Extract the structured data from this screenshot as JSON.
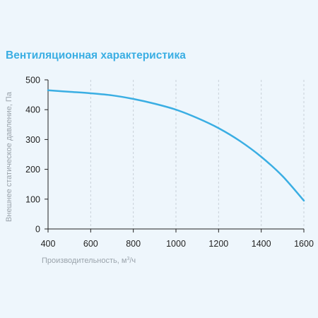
{
  "chart_data": {
    "type": "line",
    "title": "Вентиляционная характеристика",
    "xlabel": "Производительность, м³/ч",
    "xlabel_main": "Производительность, м",
    "xlabel_sup": "3",
    "xlabel_tail": "/ч",
    "ylabel": "Внешнее статическое давление, Па",
    "xlim": [
      400,
      1600
    ],
    "ylim": [
      0,
      500
    ],
    "x_ticks": [
      400,
      600,
      800,
      1000,
      1200,
      1400,
      1600
    ],
    "y_ticks": [
      0,
      100,
      200,
      300,
      400,
      500
    ],
    "grid": "vertical dashed",
    "series": [
      {
        "color": "#3aaee3",
        "x": [
          400,
          500,
          600,
          700,
          800,
          900,
          1000,
          1100,
          1200,
          1300,
          1400,
          1500,
          1600
        ],
        "y": [
          465,
          460,
          455,
          448,
          436,
          420,
          400,
          372,
          338,
          295,
          242,
          177,
          95
        ]
      }
    ]
  },
  "colors": {
    "background": "#eef6fc",
    "accent": "#3aaee3",
    "axis": "#222222",
    "grid": "#c8d0d8"
  }
}
